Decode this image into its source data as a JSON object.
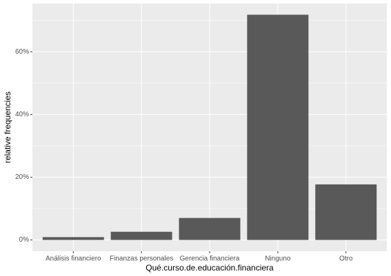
{
  "chart_data": {
    "type": "bar",
    "categories": [
      "Análisis financiero",
      "Finanzas personales",
      "Gerencia financiera",
      "Ninguno",
      "Otro"
    ],
    "values": [
      0.9,
      2.6,
      7.0,
      71.8,
      17.7
    ],
    "color": "#595959",
    "xlabel": "Qué.curso.de.educación.financiera",
    "ylabel": "relative frequencies",
    "ylim": [
      -3.6,
      75.4
    ],
    "yticks": [
      {
        "value": 0,
        "label": "0%"
      },
      {
        "value": 20,
        "label": "20%"
      },
      {
        "value": 40,
        "label": "40%"
      },
      {
        "value": 60,
        "label": "60%"
      }
    ],
    "minor_yticks": [
      10,
      30,
      50,
      70
    ],
    "grid": true
  }
}
